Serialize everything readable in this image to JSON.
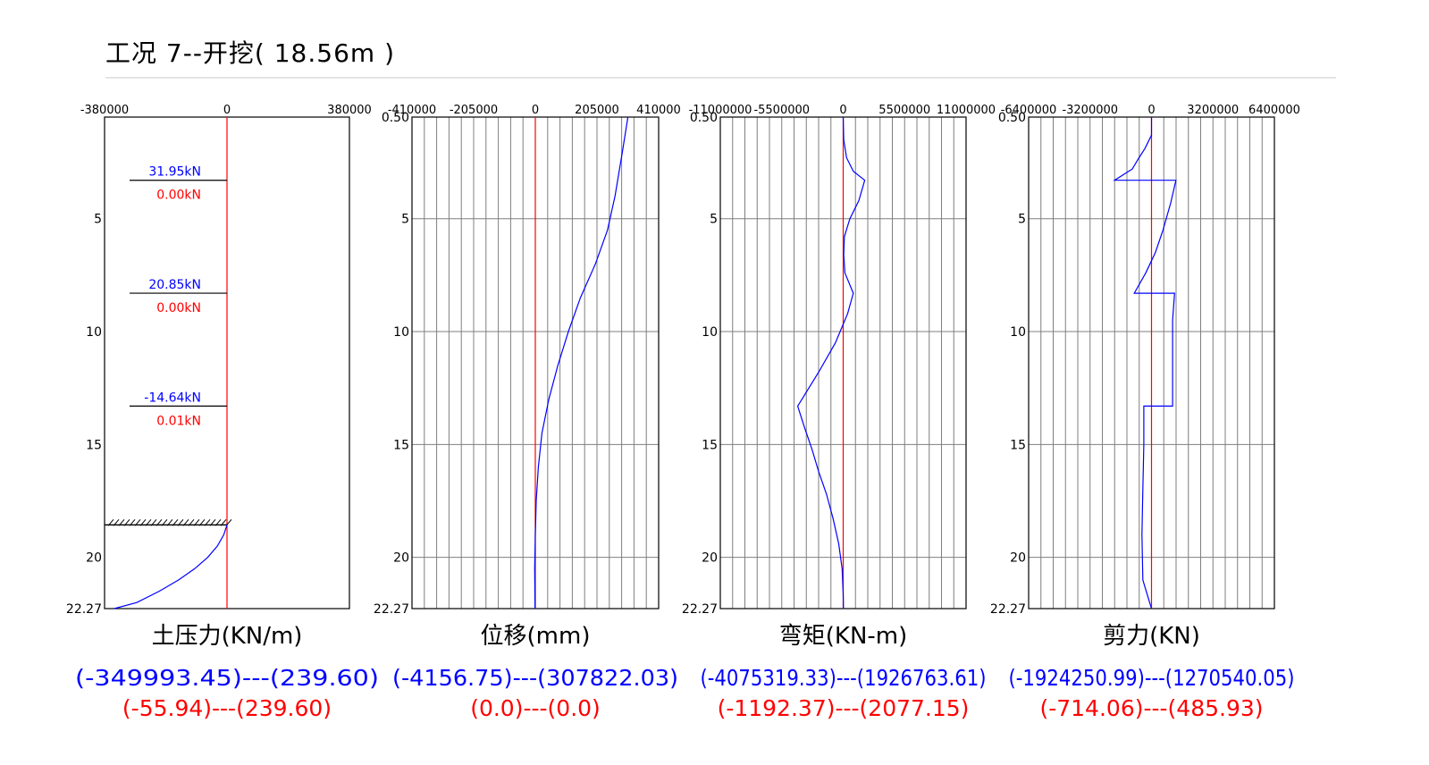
{
  "title": "工况  7--开挖( 18.56m )",
  "colors": {
    "axis": "#000000",
    "grid": "#7f7f7f",
    "zero_line": "#ff0000",
    "curve": "#0000ff",
    "range_primary": "#0000ff",
    "range_secondary": "#ff0000",
    "divider": "#c8c8c8",
    "hatch": "#000000"
  },
  "chart_data": [
    {
      "type": "line",
      "name": "earth_pressure",
      "xlabel": "土压力(KN/m)",
      "xlim": [
        -380000,
        380000
      ],
      "x_ticks": [
        "-380000",
        "0",
        "380000"
      ],
      "ylim": [
        0.5,
        22.27
      ],
      "y_ticks": [
        {
          "v": 5,
          "label": "5"
        },
        {
          "v": 10,
          "label": "10"
        },
        {
          "v": 15,
          "label": "15"
        },
        {
          "v": 20,
          "label": "20"
        },
        {
          "v": 22.27,
          "label": "22.27"
        }
      ],
      "grid": false,
      "excavation_depth": 18.56,
      "supports": [
        {
          "depth": 3.3,
          "force": "31.95kN",
          "secondary": "0.00kN"
        },
        {
          "depth": 8.3,
          "force": "20.85kN",
          "secondary": "0.00kN"
        },
        {
          "depth": 13.3,
          "force": "-14.64kN",
          "secondary": "0.01kN"
        }
      ],
      "series": [
        {
          "points": [
            [
              0,
              18.56
            ],
            [
              -10000,
              19.0
            ],
            [
              -30000,
              19.5
            ],
            [
              -60000,
              20.0
            ],
            [
              -100000,
              20.5
            ],
            [
              -150000,
              21.0
            ],
            [
              -210000,
              21.5
            ],
            [
              -280000,
              22.0
            ],
            [
              -349993.45,
              22.27
            ]
          ]
        }
      ],
      "range_primary": "(-349993.45)---(239.60)",
      "range_secondary": "(-55.94)---(239.60)"
    },
    {
      "type": "line",
      "name": "displacement",
      "xlabel": "位移(mm)",
      "xlim": [
        -410000,
        410000
      ],
      "x_ticks": [
        "-410000",
        "-205000",
        "0",
        "205000",
        "410000"
      ],
      "ylim": [
        0.5,
        22.27
      ],
      "y_ticks": [
        {
          "v": 0.5,
          "label": "0.50"
        },
        {
          "v": 5,
          "label": "5"
        },
        {
          "v": 10,
          "label": "10"
        },
        {
          "v": 15,
          "label": "15"
        },
        {
          "v": 20,
          "label": "20"
        },
        {
          "v": 22.27,
          "label": "22.27"
        }
      ],
      "grid": true,
      "grid_cols": 20,
      "grid_rows": [
        5,
        10,
        15,
        20
      ],
      "series": [
        {
          "points": [
            [
              307822,
              0.5
            ],
            [
              290000,
              2.0
            ],
            [
              265000,
              4.0
            ],
            [
              240000,
              5.5
            ],
            [
              200000,
              7.0
            ],
            [
              150000,
              8.5
            ],
            [
              110000,
              10.0
            ],
            [
              75000,
              11.5
            ],
            [
              45000,
              13.0
            ],
            [
              22000,
              14.5
            ],
            [
              10000,
              16.0
            ],
            [
              3000,
              17.5
            ],
            [
              0,
              19.0
            ],
            [
              -2000,
              20.5
            ],
            [
              -1000,
              22.27
            ]
          ]
        }
      ],
      "range_primary": "(-4156.75)---(307822.03)",
      "range_secondary": "(0.0)---(0.0)"
    },
    {
      "type": "line",
      "name": "bending_moment",
      "xlabel": "弯矩(KN-m)",
      "xlim": [
        -11000000,
        11000000
      ],
      "x_ticks": [
        "-11000000",
        "-5500000",
        "0",
        "5500000",
        "11000000"
      ],
      "ylim": [
        0.5,
        22.27
      ],
      "y_ticks": [
        {
          "v": 0.5,
          "label": "0.50"
        },
        {
          "v": 5,
          "label": "5"
        },
        {
          "v": 10,
          "label": "10"
        },
        {
          "v": 15,
          "label": "15"
        },
        {
          "v": 20,
          "label": "20"
        },
        {
          "v": 22.27,
          "label": "22.27"
        }
      ],
      "grid": true,
      "grid_cols": 20,
      "grid_rows": [
        5,
        10,
        15,
        20
      ],
      "series": [
        {
          "points": [
            [
              0,
              0.5
            ],
            [
              50000,
              1.5
            ],
            [
              300000,
              2.3
            ],
            [
              900000,
              2.9
            ],
            [
              1926763,
              3.3
            ],
            [
              1400000,
              4.2
            ],
            [
              600000,
              5.0
            ],
            [
              100000,
              5.8
            ],
            [
              50000,
              6.6
            ],
            [
              150000,
              7.4
            ],
            [
              900000,
              8.3
            ],
            [
              400000,
              9.2
            ],
            [
              -700000,
              10.5
            ],
            [
              -2200000,
              11.8
            ],
            [
              -4075319,
              13.3
            ],
            [
              -3500000,
              14.2
            ],
            [
              -2800000,
              15.2
            ],
            [
              -2200000,
              16.2
            ],
            [
              -1500000,
              17.2
            ],
            [
              -900000,
              18.3
            ],
            [
              -400000,
              19.4
            ],
            [
              -100000,
              20.5
            ],
            [
              0,
              21.6
            ],
            [
              20000,
              22.27
            ]
          ]
        }
      ],
      "range_primary": "(-4075319.33)---(1926763.61)",
      "range_secondary": "(-1192.37)---(2077.15)"
    },
    {
      "type": "line",
      "name": "shear_force",
      "xlabel": "剪力(KN)",
      "xlim": [
        -6400000,
        6400000
      ],
      "x_ticks": [
        "-6400000",
        "-3200000",
        "0",
        "3200000",
        "6400000"
      ],
      "ylim": [
        0.5,
        22.27
      ],
      "y_ticks": [
        {
          "v": 0.5,
          "label": "0.50"
        },
        {
          "v": 5,
          "label": "5"
        },
        {
          "v": 10,
          "label": "10"
        },
        {
          "v": 15,
          "label": "15"
        },
        {
          "v": 20,
          "label": "20"
        },
        {
          "v": 22.27,
          "label": "22.27"
        }
      ],
      "grid": true,
      "grid_cols": 20,
      "grid_rows": [
        5,
        10,
        15,
        20
      ],
      "series": [
        {
          "points": [
            [
              0,
              0.5
            ],
            [
              0,
              1.3
            ],
            [
              -350000,
              1.9
            ],
            [
              -650000,
              2.3
            ],
            [
              -1000000,
              2.8
            ],
            [
              -1924251,
              3.3
            ],
            [
              1270540,
              3.3
            ],
            [
              1000000,
              4.3
            ],
            [
              600000,
              5.5
            ],
            [
              200000,
              6.5
            ],
            [
              -300000,
              7.4
            ],
            [
              -900000,
              8.3
            ],
            [
              1200000,
              8.3
            ],
            [
              1100000,
              9.5
            ],
            [
              1100000,
              11.0
            ],
            [
              1100000,
              13.3
            ],
            [
              -400000,
              13.3
            ],
            [
              -400000,
              15.0
            ],
            [
              -450000,
              17.0
            ],
            [
              -500000,
              19.0
            ],
            [
              -450000,
              21.0
            ],
            [
              -100000,
              22.0
            ],
            [
              0,
              22.27
            ]
          ]
        }
      ],
      "range_primary": "(-1924250.99)---(1270540.05)",
      "range_secondary": "(-714.06)---(485.93)"
    }
  ]
}
